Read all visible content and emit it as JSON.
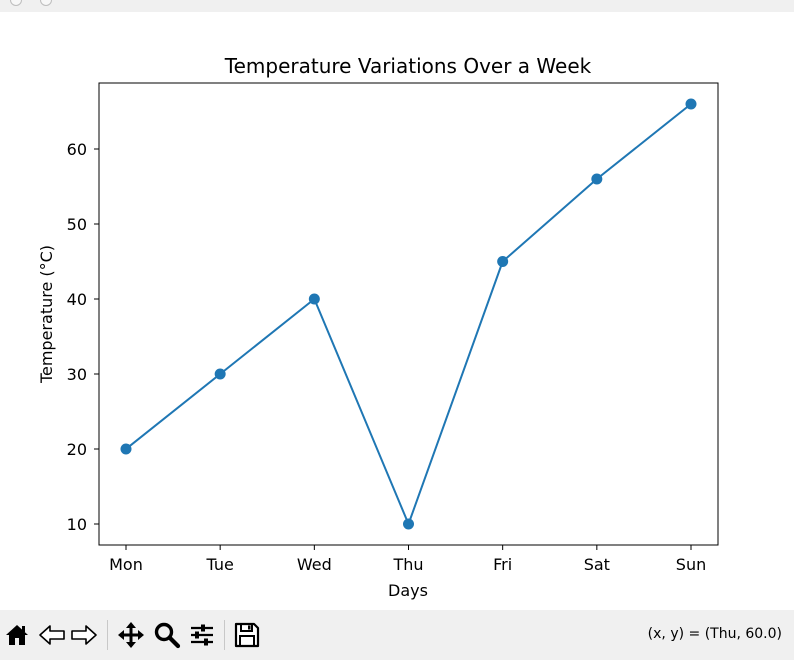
{
  "chart_data": {
    "type": "line",
    "title": "Temperature Variations Over a Week",
    "xlabel": "Days",
    "ylabel": "Temperature (°C)",
    "categories": [
      "Mon",
      "Tue",
      "Wed",
      "Thu",
      "Fri",
      "Sat",
      "Sun"
    ],
    "values": [
      20,
      30,
      40,
      10,
      45,
      56,
      66
    ],
    "yticks": [
      "10",
      "20",
      "30",
      "40",
      "50",
      "60"
    ],
    "ylim": [
      7.2,
      68.8
    ],
    "grid": false,
    "marker": "circle",
    "line_color": "#1f77b4"
  },
  "toolbar": {
    "buttons": [
      {
        "name": "home-button",
        "icon": "home-icon"
      },
      {
        "name": "back-button",
        "icon": "arrow-left-icon"
      },
      {
        "name": "forward-button",
        "icon": "arrow-right-icon"
      },
      {
        "name": "pan-button",
        "icon": "move-icon"
      },
      {
        "name": "zoom-button",
        "icon": "magnifier-icon"
      },
      {
        "name": "configure-subplots-button",
        "icon": "sliders-icon"
      },
      {
        "name": "save-button",
        "icon": "floppy-disk-icon"
      }
    ],
    "coordinates": "(x, y) = (Thu, 60.0)"
  }
}
